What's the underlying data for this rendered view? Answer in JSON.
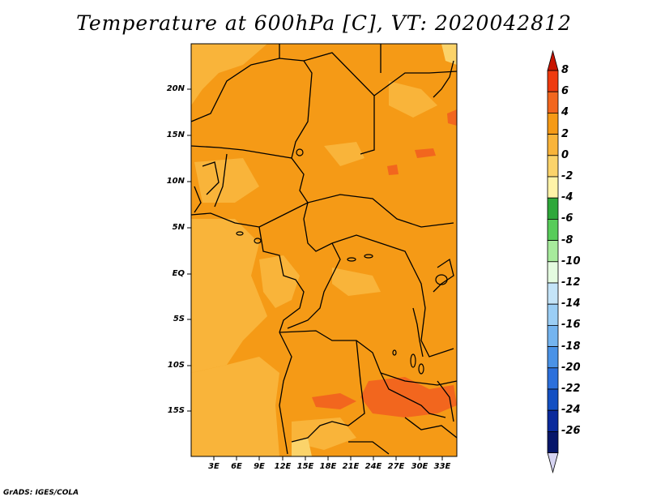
{
  "title": "Temperature at 600hPa [C], VT: 2020042812",
  "footer": "GrADS: IGES/COLA",
  "y_ticks": [
    "20N",
    "15N",
    "10N",
    "5N",
    "EQ",
    "5S",
    "10S",
    "15S"
  ],
  "x_ticks": [
    "3E",
    "6E",
    "9E",
    "12E",
    "15E",
    "18E",
    "21E",
    "24E",
    "27E",
    "30E",
    "33E"
  ],
  "colorbar": {
    "labels": [
      "8",
      "6",
      "4",
      "2",
      "0",
      "-2",
      "-4",
      "-6",
      "-8",
      "-10",
      "-12",
      "-14",
      "-16",
      "-18",
      "-20",
      "-22",
      "-24",
      "-26"
    ],
    "colors": [
      "#c81400",
      "#ef3a0f",
      "#f2661e",
      "#f59a16",
      "#f9b43a",
      "#fbd36a",
      "#fff3a8",
      "#2ea83a",
      "#58cc5a",
      "#a7eb9c",
      "#e4fbe0",
      "#c4e4f8",
      "#9bcef5",
      "#74b4ef",
      "#4a92e6",
      "#2c70dc",
      "#1450c3",
      "#0a2a9c",
      "#06166a",
      "#d6d4f2"
    ]
  },
  "map": {
    "lat_range": [
      -19,
      24
    ],
    "lon_range": [
      0,
      35
    ]
  }
}
